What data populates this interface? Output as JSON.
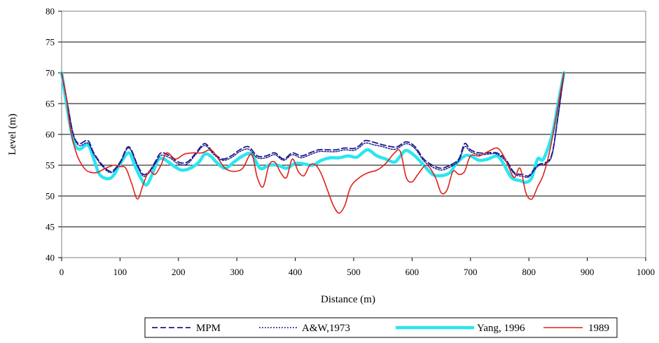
{
  "chart_data": {
    "type": "line",
    "title": "",
    "xlabel": "Distance (m)",
    "ylabel": "Level (m)",
    "xlim": [
      0,
      1000
    ],
    "ylim": [
      40,
      80
    ],
    "x_ticks": [
      0,
      100,
      200,
      300,
      400,
      500,
      600,
      700,
      800,
      900,
      1000
    ],
    "y_ticks": [
      40,
      45,
      50,
      55,
      60,
      65,
      70,
      75,
      80
    ],
    "grid": "horizontal",
    "legend_position": "bottom",
    "series": [
      {
        "name": "MPM",
        "style": "dashed",
        "color": "#1a1a8c",
        "points": [
          [
            0,
            70
          ],
          [
            10,
            65
          ],
          [
            20,
            60
          ],
          [
            30,
            58.5
          ],
          [
            45,
            59
          ],
          [
            55,
            57
          ],
          [
            70,
            55
          ],
          [
            85,
            54
          ],
          [
            100,
            55.5
          ],
          [
            115,
            58
          ],
          [
            130,
            55
          ],
          [
            140,
            53.5
          ],
          [
            150,
            54
          ],
          [
            160,
            55.5
          ],
          [
            170,
            57
          ],
          [
            185,
            56.5
          ],
          [
            200,
            55.5
          ],
          [
            215,
            55.5
          ],
          [
            230,
            57
          ],
          [
            245,
            58.5
          ],
          [
            260,
            57
          ],
          [
            275,
            56
          ],
          [
            290,
            56.5
          ],
          [
            305,
            57.5
          ],
          [
            320,
            58
          ],
          [
            335,
            56.5
          ],
          [
            350,
            56.5
          ],
          [
            365,
            57
          ],
          [
            380,
            56
          ],
          [
            395,
            57
          ],
          [
            410,
            56.5
          ],
          [
            425,
            57
          ],
          [
            440,
            57.5
          ],
          [
            455,
            57.5
          ],
          [
            470,
            57.5
          ],
          [
            485,
            57.8
          ],
          [
            500,
            57.7
          ],
          [
            510,
            58.2
          ],
          [
            520,
            59
          ],
          [
            535,
            58.7
          ],
          [
            550,
            58.3
          ],
          [
            565,
            58
          ],
          [
            575,
            58
          ],
          [
            590,
            58.8
          ],
          [
            605,
            58
          ],
          [
            620,
            56
          ],
          [
            635,
            55
          ],
          [
            650,
            54.5
          ],
          [
            665,
            55
          ],
          [
            680,
            56
          ],
          [
            690,
            58.5
          ],
          [
            700,
            57.5
          ],
          [
            715,
            57
          ],
          [
            730,
            57
          ],
          [
            745,
            57
          ],
          [
            760,
            56
          ],
          [
            775,
            53.8
          ],
          [
            790,
            53.5
          ],
          [
            800,
            53.3
          ],
          [
            815,
            55
          ],
          [
            830,
            55.5
          ],
          [
            840,
            57
          ],
          [
            850,
            63
          ],
          [
            860,
            70
          ]
        ]
      },
      {
        "name": "A&W,1973",
        "style": "dotted",
        "color": "#1a1a8c",
        "points": [
          [
            0,
            70
          ],
          [
            10,
            65
          ],
          [
            20,
            60
          ],
          [
            30,
            58.2
          ],
          [
            45,
            58.6
          ],
          [
            55,
            56.8
          ],
          [
            70,
            54.8
          ],
          [
            85,
            53.8
          ],
          [
            100,
            55.3
          ],
          [
            115,
            57.8
          ],
          [
            130,
            54.8
          ],
          [
            140,
            53.2
          ],
          [
            150,
            53.8
          ],
          [
            160,
            55.2
          ],
          [
            170,
            56.6
          ],
          [
            185,
            56.2
          ],
          [
            200,
            55.2
          ],
          [
            215,
            55.2
          ],
          [
            230,
            56.8
          ],
          [
            245,
            58.2
          ],
          [
            260,
            56.8
          ],
          [
            275,
            55.8
          ],
          [
            290,
            56.2
          ],
          [
            305,
            57.2
          ],
          [
            320,
            57.6
          ],
          [
            335,
            56.2
          ],
          [
            350,
            56.2
          ],
          [
            365,
            56.7
          ],
          [
            380,
            55.8
          ],
          [
            395,
            56.7
          ],
          [
            410,
            56.2
          ],
          [
            425,
            56.7
          ],
          [
            440,
            57.2
          ],
          [
            455,
            57.2
          ],
          [
            470,
            57.2
          ],
          [
            485,
            57.5
          ],
          [
            500,
            57.4
          ],
          [
            510,
            57.9
          ],
          [
            520,
            58.6
          ],
          [
            535,
            58.3
          ],
          [
            550,
            58
          ],
          [
            565,
            57.6
          ],
          [
            575,
            57.7
          ],
          [
            590,
            58.5
          ],
          [
            605,
            57.7
          ],
          [
            620,
            55.7
          ],
          [
            635,
            54.7
          ],
          [
            650,
            54.2
          ],
          [
            665,
            54.7
          ],
          [
            680,
            55.7
          ],
          [
            690,
            58
          ],
          [
            700,
            57.2
          ],
          [
            715,
            56.7
          ],
          [
            730,
            56.8
          ],
          [
            745,
            56.8
          ],
          [
            760,
            55.7
          ],
          [
            775,
            53.6
          ],
          [
            790,
            53.2
          ],
          [
            800,
            53.1
          ],
          [
            815,
            54.8
          ],
          [
            830,
            55.3
          ],
          [
            840,
            56.8
          ],
          [
            850,
            63
          ],
          [
            860,
            70
          ]
        ]
      },
      {
        "name": "Yang, 1996",
        "style": "solid-thick",
        "color": "#29e6f0",
        "points": [
          [
            0,
            70
          ],
          [
            10,
            64
          ],
          [
            20,
            59
          ],
          [
            30,
            57.6
          ],
          [
            45,
            58.3
          ],
          [
            55,
            56
          ],
          [
            65,
            53.5
          ],
          [
            80,
            52.8
          ],
          [
            90,
            53.5
          ],
          [
            100,
            55.2
          ],
          [
            115,
            57
          ],
          [
            125,
            55
          ],
          [
            135,
            53
          ],
          [
            145,
            51.8
          ],
          [
            155,
            53.5
          ],
          [
            165,
            55.8
          ],
          [
            175,
            56
          ],
          [
            190,
            55
          ],
          [
            205,
            54.2
          ],
          [
            220,
            54.5
          ],
          [
            235,
            55.5
          ],
          [
            245,
            56.8
          ],
          [
            255,
            56.5
          ],
          [
            265,
            55.5
          ],
          [
            280,
            54.5
          ],
          [
            295,
            55.5
          ],
          [
            310,
            56.5
          ],
          [
            325,
            56.8
          ],
          [
            340,
            54.5
          ],
          [
            355,
            55
          ],
          [
            370,
            55
          ],
          [
            385,
            54.5
          ],
          [
            400,
            55.3
          ],
          [
            415,
            55.2
          ],
          [
            430,
            55
          ],
          [
            445,
            55.8
          ],
          [
            460,
            56.2
          ],
          [
            475,
            56.2
          ],
          [
            490,
            56.5
          ],
          [
            505,
            56.3
          ],
          [
            515,
            57
          ],
          [
            525,
            57.5
          ],
          [
            540,
            56.5
          ],
          [
            555,
            56
          ],
          [
            570,
            55.5
          ],
          [
            580,
            56.5
          ],
          [
            590,
            57.4
          ],
          [
            605,
            56.5
          ],
          [
            620,
            55
          ],
          [
            635,
            53.5
          ],
          [
            650,
            53.3
          ],
          [
            665,
            53.8
          ],
          [
            675,
            55.2
          ],
          [
            690,
            56.5
          ],
          [
            700,
            56.5
          ],
          [
            715,
            55.8
          ],
          [
            730,
            56
          ],
          [
            745,
            56.5
          ],
          [
            755,
            55.5
          ],
          [
            770,
            53
          ],
          [
            785,
            52.5
          ],
          [
            795,
            52.2
          ],
          [
            805,
            53
          ],
          [
            815,
            56
          ],
          [
            825,
            56
          ],
          [
            840,
            60
          ],
          [
            850,
            65
          ],
          [
            860,
            70
          ]
        ]
      },
      {
        "name": "1989",
        "style": "solid",
        "color": "#e0201a",
        "points": [
          [
            0,
            70
          ],
          [
            8,
            66
          ],
          [
            15,
            61
          ],
          [
            25,
            57
          ],
          [
            35,
            55
          ],
          [
            45,
            54
          ],
          [
            60,
            53.8
          ],
          [
            75,
            54.5
          ],
          [
            90,
            55
          ],
          [
            100,
            54.8
          ],
          [
            110,
            54.5
          ],
          [
            120,
            52
          ],
          [
            130,
            49.5
          ],
          [
            140,
            52
          ],
          [
            150,
            54
          ],
          [
            160,
            53.5
          ],
          [
            170,
            55
          ],
          [
            180,
            57
          ],
          [
            195,
            56
          ],
          [
            210,
            56.8
          ],
          [
            225,
            57
          ],
          [
            240,
            57
          ],
          [
            255,
            57.5
          ],
          [
            265,
            56.5
          ],
          [
            280,
            54.5
          ],
          [
            295,
            54
          ],
          [
            310,
            54.5
          ],
          [
            325,
            56.8
          ],
          [
            335,
            53
          ],
          [
            345,
            51.5
          ],
          [
            355,
            55
          ],
          [
            365,
            55.5
          ],
          [
            375,
            53.8
          ],
          [
            385,
            53
          ],
          [
            395,
            56
          ],
          [
            405,
            54
          ],
          [
            415,
            53.3
          ],
          [
            425,
            55
          ],
          [
            435,
            55
          ],
          [
            445,
            53.5
          ],
          [
            455,
            51
          ],
          [
            465,
            48.5
          ],
          [
            475,
            47.2
          ],
          [
            485,
            48.5
          ],
          [
            495,
            51.5
          ],
          [
            510,
            53
          ],
          [
            525,
            53.8
          ],
          [
            540,
            54.2
          ],
          [
            555,
            55.3
          ],
          [
            570,
            57
          ],
          [
            580,
            57.2
          ],
          [
            590,
            53
          ],
          [
            600,
            52.3
          ],
          [
            610,
            53.5
          ],
          [
            625,
            55
          ],
          [
            640,
            53
          ],
          [
            650,
            50.5
          ],
          [
            660,
            51
          ],
          [
            670,
            54
          ],
          [
            680,
            53.5
          ],
          [
            690,
            54
          ],
          [
            700,
            56.5
          ],
          [
            715,
            56.5
          ],
          [
            730,
            57.2
          ],
          [
            745,
            57.8
          ],
          [
            755,
            56.8
          ],
          [
            765,
            54.8
          ],
          [
            775,
            53
          ],
          [
            785,
            54.5
          ],
          [
            795,
            50.5
          ],
          [
            805,
            49.5
          ],
          [
            815,
            51.5
          ],
          [
            825,
            53.5
          ],
          [
            835,
            57
          ],
          [
            845,
            62
          ],
          [
            860,
            70
          ]
        ]
      }
    ]
  }
}
